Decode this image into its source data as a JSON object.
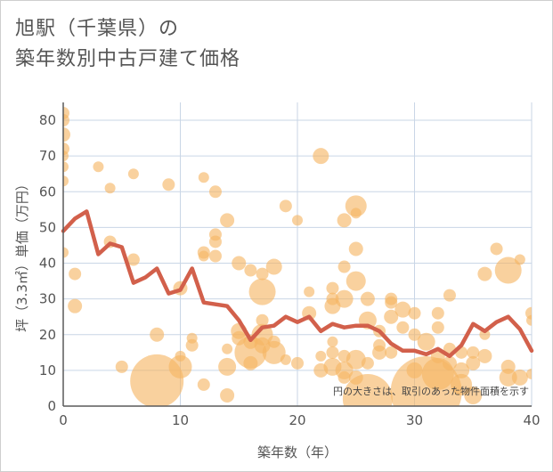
{
  "title_lines": [
    "旭駅（千葉県）の",
    "築年数別中古戸建て価格"
  ],
  "chart_data": {
    "type": "scatter+line",
    "xlabel": "築年数（年）",
    "ylabel": "坪（3.3㎡）単価（万円）",
    "xlim": [
      0,
      40
    ],
    "ylim": [
      0,
      85
    ],
    "xticks": [
      0,
      10,
      20,
      30,
      40
    ],
    "yticks": [
      0,
      10,
      20,
      30,
      40,
      50,
      60,
      70,
      80
    ],
    "grid": true,
    "note": "円の大きさは、取引のあった物件面積を示す",
    "colors": {
      "bubble": "#f5b562",
      "line": "#d2604b",
      "grid": "#c9d6e6",
      "axis": "#5a5a5a"
    },
    "line_series": {
      "x": [
        0,
        1,
        2,
        3,
        4,
        5,
        6,
        7,
        8,
        9,
        10,
        11,
        12,
        13,
        14,
        15,
        16,
        17,
        18,
        19,
        20,
        21,
        22,
        23,
        24,
        25,
        26,
        27,
        28,
        29,
        30,
        31,
        32,
        33,
        34,
        35,
        36,
        37,
        38,
        39,
        40
      ],
      "y": [
        49,
        52.5,
        54.5,
        42.5,
        45.5,
        44.5,
        34.5,
        36,
        38.5,
        31.5,
        32.5,
        38.5,
        29,
        28.5,
        28,
        24,
        18.5,
        22,
        22.5,
        25,
        23.5,
        25,
        21,
        23,
        22,
        22.5,
        22.5,
        21,
        17.5,
        15.5,
        15.5,
        14.5,
        16,
        14,
        17,
        23,
        21,
        23.5,
        25,
        21.5,
        15.5
      ]
    },
    "bubbles": [
      {
        "x": 0,
        "y": 82,
        "r": 7
      },
      {
        "x": 0,
        "y": 80,
        "r": 7
      },
      {
        "x": 0,
        "y": 76,
        "r": 8
      },
      {
        "x": 0,
        "y": 72,
        "r": 7
      },
      {
        "x": 0,
        "y": 70,
        "r": 6
      },
      {
        "x": 0,
        "y": 67,
        "r": 6
      },
      {
        "x": 0,
        "y": 63,
        "r": 6
      },
      {
        "x": 0,
        "y": 43,
        "r": 6
      },
      {
        "x": 1,
        "y": 37,
        "r": 7
      },
      {
        "x": 1,
        "y": 28,
        "r": 8
      },
      {
        "x": 3,
        "y": 67,
        "r": 6
      },
      {
        "x": 4,
        "y": 61,
        "r": 6
      },
      {
        "x": 4,
        "y": 46,
        "r": 7
      },
      {
        "x": 5,
        "y": 11,
        "r": 7
      },
      {
        "x": 6,
        "y": 65,
        "r": 6
      },
      {
        "x": 6,
        "y": 41,
        "r": 7
      },
      {
        "x": 8,
        "y": 20,
        "r": 8
      },
      {
        "x": 8,
        "y": 7,
        "r": 30
      },
      {
        "x": 9,
        "y": 62,
        "r": 7
      },
      {
        "x": 10,
        "y": 14,
        "r": 6
      },
      {
        "x": 10,
        "y": 11,
        "r": 13
      },
      {
        "x": 10,
        "y": 33,
        "r": 8
      },
      {
        "x": 11,
        "y": 19,
        "r": 6
      },
      {
        "x": 11,
        "y": 17,
        "r": 7
      },
      {
        "x": 12,
        "y": 64,
        "r": 6
      },
      {
        "x": 12,
        "y": 43,
        "r": 7
      },
      {
        "x": 12,
        "y": 42,
        "r": 6
      },
      {
        "x": 12,
        "y": 6,
        "r": 7
      },
      {
        "x": 13,
        "y": 60,
        "r": 7
      },
      {
        "x": 13,
        "y": 48,
        "r": 7
      },
      {
        "x": 13,
        "y": 46,
        "r": 7
      },
      {
        "x": 13,
        "y": 42,
        "r": 7
      },
      {
        "x": 14,
        "y": 52,
        "r": 8
      },
      {
        "x": 14,
        "y": 11,
        "r": 10
      },
      {
        "x": 14,
        "y": 3,
        "r": 8
      },
      {
        "x": 14,
        "y": 16,
        "r": 6
      },
      {
        "x": 15,
        "y": 40,
        "r": 8
      },
      {
        "x": 15,
        "y": 21,
        "r": 9
      },
      {
        "x": 15,
        "y": 19,
        "r": 8
      },
      {
        "x": 16,
        "y": 38,
        "r": 7
      },
      {
        "x": 16,
        "y": 18,
        "r": 8
      },
      {
        "x": 16,
        "y": 15,
        "r": 18
      },
      {
        "x": 16,
        "y": 12,
        "r": 8
      },
      {
        "x": 17,
        "y": 32,
        "r": 15
      },
      {
        "x": 17,
        "y": 37,
        "r": 7
      },
      {
        "x": 17,
        "y": 24,
        "r": 7
      },
      {
        "x": 17,
        "y": 20,
        "r": 12
      },
      {
        "x": 17,
        "y": 17,
        "r": 9
      },
      {
        "x": 18,
        "y": 39,
        "r": 9
      },
      {
        "x": 18,
        "y": 18,
        "r": 7
      },
      {
        "x": 18,
        "y": 15,
        "r": 13
      },
      {
        "x": 19,
        "y": 56,
        "r": 7
      },
      {
        "x": 19,
        "y": 13,
        "r": 6
      },
      {
        "x": 20,
        "y": 52,
        "r": 6
      },
      {
        "x": 20,
        "y": 12,
        "r": 7
      },
      {
        "x": 21,
        "y": 32,
        "r": 6
      },
      {
        "x": 21,
        "y": 26,
        "r": 8
      },
      {
        "x": 22,
        "y": 70,
        "r": 9
      },
      {
        "x": 22,
        "y": 14,
        "r": 6
      },
      {
        "x": 22,
        "y": 10,
        "r": 8
      },
      {
        "x": 23,
        "y": 33,
        "r": 7
      },
      {
        "x": 23,
        "y": 30,
        "r": 7
      },
      {
        "x": 23,
        "y": 28,
        "r": 9
      },
      {
        "x": 23,
        "y": 18,
        "r": 6
      },
      {
        "x": 23,
        "y": 15,
        "r": 7
      },
      {
        "x": 23,
        "y": 11,
        "r": 10
      },
      {
        "x": 24,
        "y": 52,
        "r": 8
      },
      {
        "x": 24,
        "y": 39,
        "r": 7
      },
      {
        "x": 24,
        "y": 30,
        "r": 10
      },
      {
        "x": 24,
        "y": 14,
        "r": 7
      },
      {
        "x": 24,
        "y": 10,
        "r": 10
      },
      {
        "x": 24,
        "y": 8,
        "r": 7
      },
      {
        "x": 25,
        "y": 56,
        "r": 12
      },
      {
        "x": 25,
        "y": 54,
        "r": 6
      },
      {
        "x": 25,
        "y": 44,
        "r": 8
      },
      {
        "x": 25,
        "y": 35,
        "r": 11
      },
      {
        "x": 25,
        "y": 13,
        "r": 11
      },
      {
        "x": 25,
        "y": 8,
        "r": 8
      },
      {
        "x": 26,
        "y": 30,
        "r": 8
      },
      {
        "x": 26,
        "y": 24,
        "r": 10
      },
      {
        "x": 26,
        "y": 12,
        "r": 7
      },
      {
        "x": 26,
        "y": 2,
        "r": 28
      },
      {
        "x": 27,
        "y": 21,
        "r": 7
      },
      {
        "x": 27,
        "y": 17,
        "r": 7
      },
      {
        "x": 27,
        "y": 15,
        "r": 8
      },
      {
        "x": 28,
        "y": 30,
        "r": 7
      },
      {
        "x": 28,
        "y": 29,
        "r": 7
      },
      {
        "x": 28,
        "y": 25,
        "r": 8
      },
      {
        "x": 28,
        "y": 15,
        "r": 7
      },
      {
        "x": 29,
        "y": 27,
        "r": 9
      },
      {
        "x": 29,
        "y": 22,
        "r": 7
      },
      {
        "x": 30,
        "y": 26,
        "r": 7
      },
      {
        "x": 30,
        "y": 20,
        "r": 7
      },
      {
        "x": 30,
        "y": 10,
        "r": 9
      },
      {
        "x": 31,
        "y": 18,
        "r": 10
      },
      {
        "x": 31,
        "y": 4,
        "r": 40
      },
      {
        "x": 32,
        "y": 26,
        "r": 7
      },
      {
        "x": 32,
        "y": 22,
        "r": 7
      },
      {
        "x": 32,
        "y": 14,
        "r": 8
      },
      {
        "x": 32,
        "y": 9,
        "r": 18
      },
      {
        "x": 33,
        "y": 31,
        "r": 7
      },
      {
        "x": 33,
        "y": 16,
        "r": 7
      },
      {
        "x": 33,
        "y": 12,
        "r": 8
      },
      {
        "x": 34,
        "y": 15,
        "r": 7
      },
      {
        "x": 34,
        "y": 10,
        "r": 9
      },
      {
        "x": 34,
        "y": 6,
        "r": 12
      },
      {
        "x": 35,
        "y": 15,
        "r": 7
      },
      {
        "x": 35,
        "y": 12,
        "r": 8
      },
      {
        "x": 35,
        "y": 3,
        "r": 10
      },
      {
        "x": 36,
        "y": 37,
        "r": 8
      },
      {
        "x": 36,
        "y": 20,
        "r": 6
      },
      {
        "x": 36,
        "y": 14,
        "r": 8
      },
      {
        "x": 37,
        "y": 44,
        "r": 7
      },
      {
        "x": 38,
        "y": 38,
        "r": 15
      },
      {
        "x": 38,
        "y": 11,
        "r": 8
      },
      {
        "x": 38,
        "y": 8,
        "r": 10
      },
      {
        "x": 39,
        "y": 41,
        "r": 6
      },
      {
        "x": 39,
        "y": 8,
        "r": 9
      },
      {
        "x": 40,
        "y": 26,
        "r": 7
      },
      {
        "x": 40,
        "y": 24,
        "r": 6
      },
      {
        "x": 40,
        "y": 9,
        "r": 6
      }
    ]
  }
}
